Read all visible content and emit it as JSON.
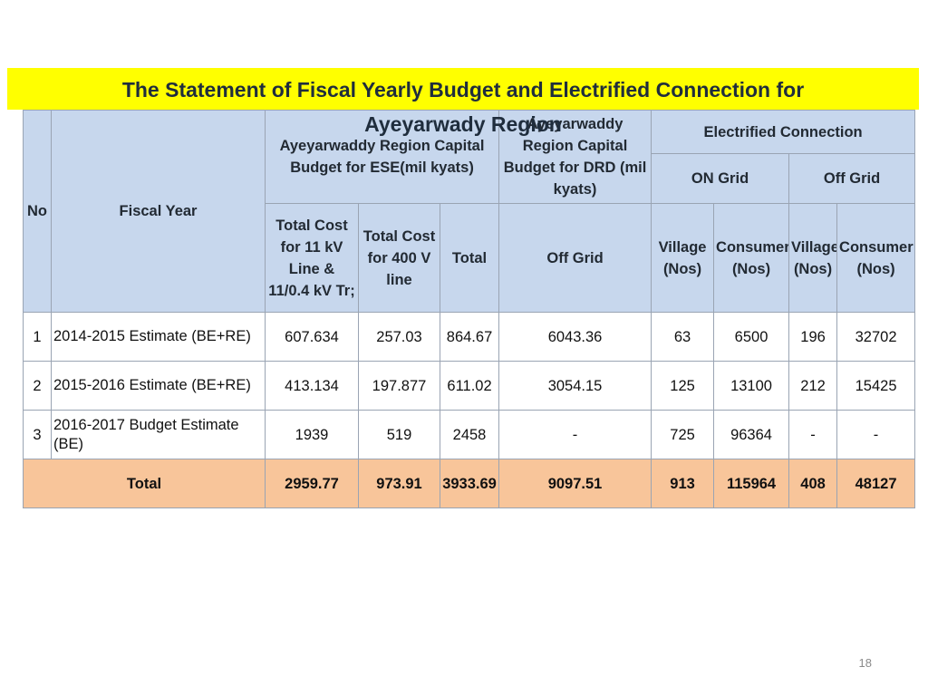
{
  "title": {
    "line1": "The Statement of Fiscal Yearly Budget and Electrified Connection for",
    "line2": "Ayeyarwady Region"
  },
  "headers": {
    "no": "No",
    "fiscal_year": "Fiscal Year",
    "ese_group": "Ayeyarwaddy Region Capital Budget for ESE(mil kyats)",
    "drd_group": "Ayeyarwaddy Region Capital  Budget  for DRD (mil kyats)",
    "electrified": "Electrified Connection",
    "on_grid": "ON Grid",
    "off_grid": "Off Grid",
    "cost_11kv": "Total Cost for 11 kV Line & 11/0.4  kV Tr;",
    "cost_400v": "Total Cost for 400  V line",
    "total": "Total",
    "drd_off_grid": "Off Grid",
    "on_village": "Village (Nos)",
    "on_consumer": "Consumer (Nos)",
    "off_village": "Village (Nos)",
    "off_consumer": "Consumer (Nos)"
  },
  "rows": [
    {
      "no": "1",
      "fiscal_year": "2014-2015 Estimate (BE+RE)",
      "cost_11kv": "607.634",
      "cost_400v": "257.03",
      "total": "864.67",
      "drd_off_grid": "6043.36",
      "on_village": "63",
      "on_consumer": "6500",
      "off_village": "196",
      "off_consumer": "32702"
    },
    {
      "no": "2",
      "fiscal_year": "2015-2016 Estimate (BE+RE)",
      "cost_11kv": "413.134",
      "cost_400v": "197.877",
      "total": "611.02",
      "drd_off_grid": "3054.15",
      "on_village": "125",
      "on_consumer": "13100",
      "off_village": "212",
      "off_consumer": "15425"
    },
    {
      "no": "3",
      "fiscal_year": "2016-2017 Budget Estimate (BE)",
      "cost_11kv": "1939",
      "cost_400v": "519",
      "total": "2458",
      "drd_off_grid": "-",
      "on_village": "725",
      "on_consumer": "96364",
      "off_village": "-",
      "off_consumer": "-"
    }
  ],
  "totals": {
    "label": "Total",
    "cost_11kv": "2959.77",
    "cost_400v": "973.91",
    "total": "3933.69",
    "drd_off_grid": "9097.51",
    "on_village": "913",
    "on_consumer": "115964",
    "off_village": "408",
    "off_consumer": "48127"
  },
  "colors": {
    "title_band": "#ffff00",
    "header_fill": "#c7d7ed",
    "total_fill": "#f8c59a"
  },
  "page_number": "18"
}
